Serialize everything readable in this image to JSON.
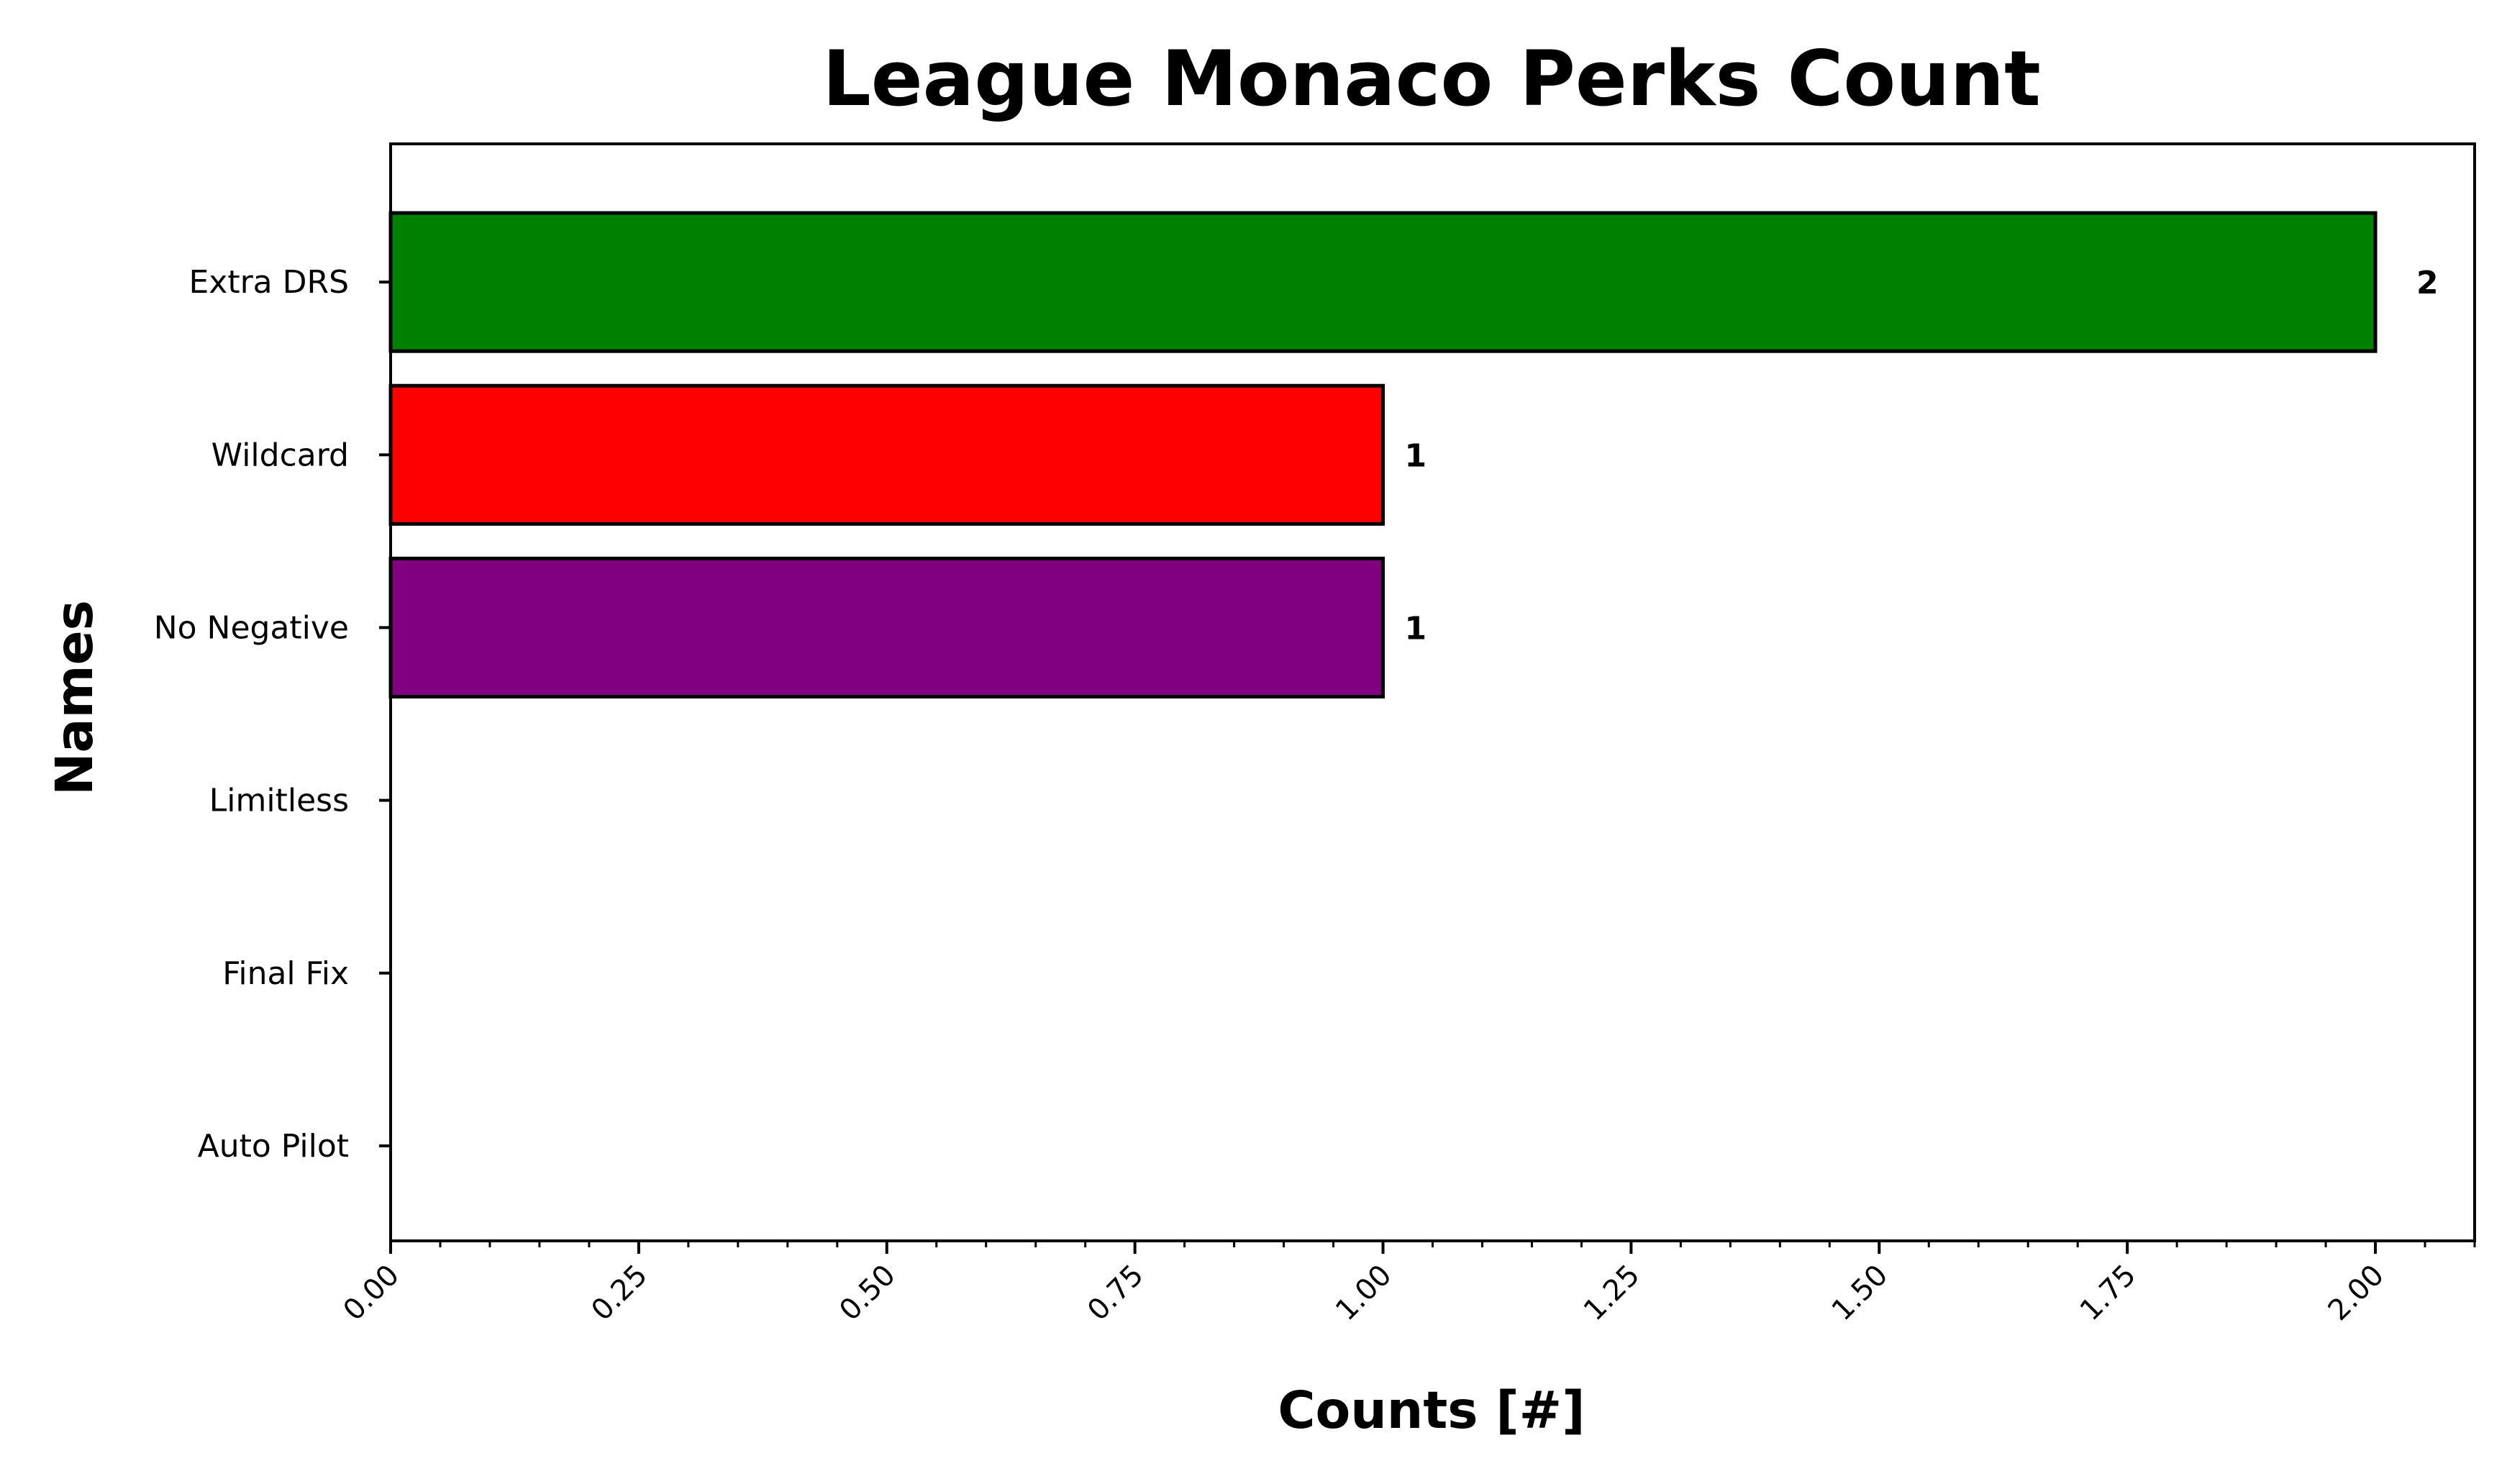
{
  "chart_data": {
    "type": "bar",
    "orientation": "horizontal",
    "title": "League Monaco Perks Count",
    "xlabel": "Counts [#]",
    "ylabel": "Names",
    "categories": [
      "Extra DRS",
      "Wildcard",
      "No Negative",
      "Limitless",
      "Final Fix",
      "Auto Pilot"
    ],
    "values": [
      2,
      1,
      1,
      0,
      0,
      0
    ],
    "data_labels": [
      "2",
      "1",
      "1",
      "",
      "",
      ""
    ],
    "colors": [
      "#008000",
      "#ff0000",
      "#800080",
      "#000000",
      "#000000",
      "#000000"
    ],
    "edge_color": "#000000",
    "xlim": [
      0,
      2.1
    ],
    "xticks": [
      0,
      0.25,
      0.5,
      0.75,
      1.0,
      1.25,
      1.5,
      1.75,
      2.0
    ],
    "xtick_labels": [
      "0.00",
      "0.25",
      "0.50",
      "0.75",
      "1.00",
      "1.25",
      "1.50",
      "1.75",
      "2.00"
    ],
    "x_minor_tick_step": 0.05,
    "grid": false,
    "legend": false
  }
}
